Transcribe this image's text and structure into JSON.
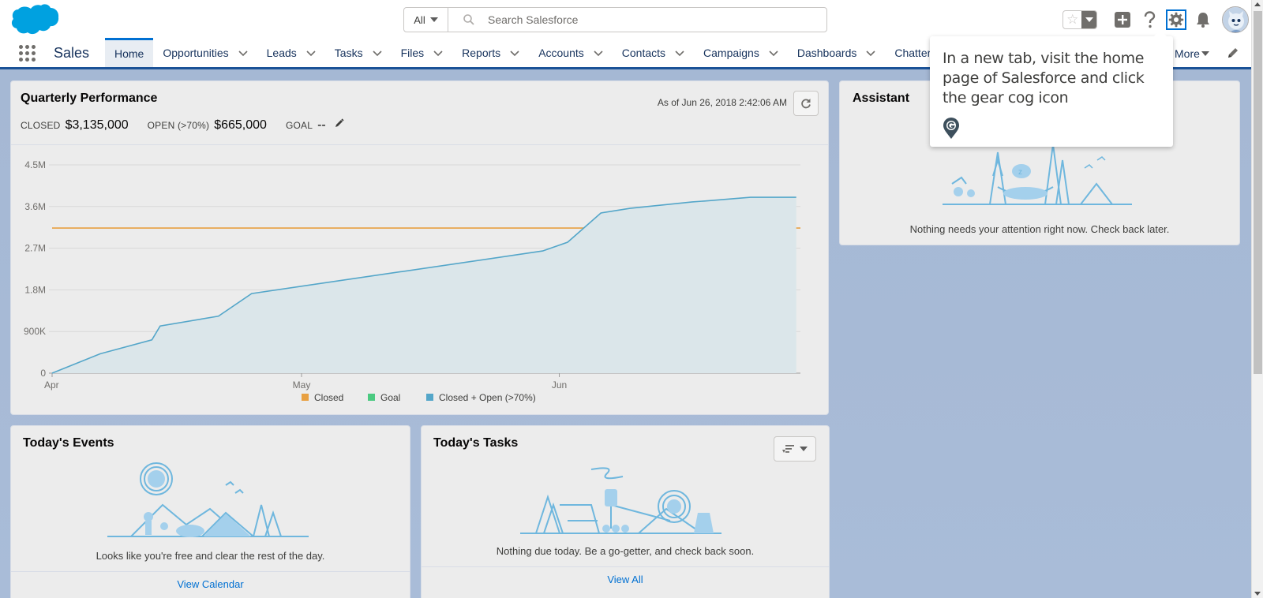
{
  "header": {
    "search_scope": "All",
    "search_placeholder": "Search Salesforce",
    "icons": [
      "favorites-star-icon",
      "add-icon",
      "help-icon",
      "setup-gear-icon",
      "notifications-bell-icon",
      "user-avatar"
    ]
  },
  "nav": {
    "app_name": "Sales",
    "items": [
      {
        "label": "Home",
        "active": true,
        "has_menu": false
      },
      {
        "label": "Opportunities",
        "active": false,
        "has_menu": true
      },
      {
        "label": "Leads",
        "active": false,
        "has_menu": true
      },
      {
        "label": "Tasks",
        "active": false,
        "has_menu": true
      },
      {
        "label": "Files",
        "active": false,
        "has_menu": true
      },
      {
        "label": "Reports",
        "active": false,
        "has_menu": true
      },
      {
        "label": "Accounts",
        "active": false,
        "has_menu": true
      },
      {
        "label": "Contacts",
        "active": false,
        "has_menu": true
      },
      {
        "label": "Campaigns",
        "active": false,
        "has_menu": true
      },
      {
        "label": "Dashboards",
        "active": false,
        "has_menu": true
      },
      {
        "label": "Chatter",
        "active": false,
        "has_menu": false
      }
    ],
    "more_label": "More"
  },
  "quarterly": {
    "title": "Quarterly Performance",
    "as_of": "As of Jun 26, 2018 2:42:06 AM",
    "closed_label": "CLOSED",
    "closed_value": "$3,135,000",
    "open_label": "OPEN (>70%)",
    "open_value": "$665,000",
    "goal_label": "GOAL",
    "goal_value": "--"
  },
  "chart_data": {
    "type": "line",
    "title": "",
    "xlabel": "",
    "ylabel": "",
    "x_ticks": [
      "Apr",
      "May",
      "Jun"
    ],
    "y_ticks": [
      "0",
      "900K",
      "1.8M",
      "2.7M",
      "3.6M",
      "4.5M"
    ],
    "ylim": [
      0,
      4500000
    ],
    "xlim_days": [
      0,
      90
    ],
    "legend": [
      {
        "name": "Closed",
        "color": "#e8a041"
      },
      {
        "name": "Goal",
        "color": "#4bca81"
      },
      {
        "name": "Closed + Open (>70%)",
        "color": "#54a6c9"
      }
    ],
    "legend_position": "bottom",
    "grid": true,
    "series": [
      {
        "name": "Closed",
        "color": "#e8a041",
        "x_days": [
          0,
          90
        ],
        "values": [
          3135000,
          3135000
        ]
      },
      {
        "name": "Closed + Open (>70%)",
        "color": "#54a6c9",
        "area": true,
        "x_days": [
          0,
          5.8,
          12,
          13,
          20,
          24,
          59,
          62,
          66,
          69.5,
          77,
          78.5,
          84,
          89.5
        ],
        "values": [
          0,
          420000,
          720000,
          1020000,
          1230000,
          1720000,
          2640000,
          2830000,
          3460000,
          3560000,
          3700000,
          3720000,
          3800000,
          3800000
        ]
      }
    ]
  },
  "assistant": {
    "title": "Assistant",
    "message": "Nothing needs your attention right now. Check back later."
  },
  "events": {
    "title": "Today's Events",
    "message": "Looks like you're free and clear the rest of the day.",
    "footer": "View Calendar"
  },
  "tasks": {
    "title": "Today's Tasks",
    "message": "Nothing due today. Be a go-getter, and check back soon.",
    "footer": "View All"
  },
  "tooltip": {
    "text": "In a new tab, visit the home page of Salesforce and click the gear cog icon"
  }
}
